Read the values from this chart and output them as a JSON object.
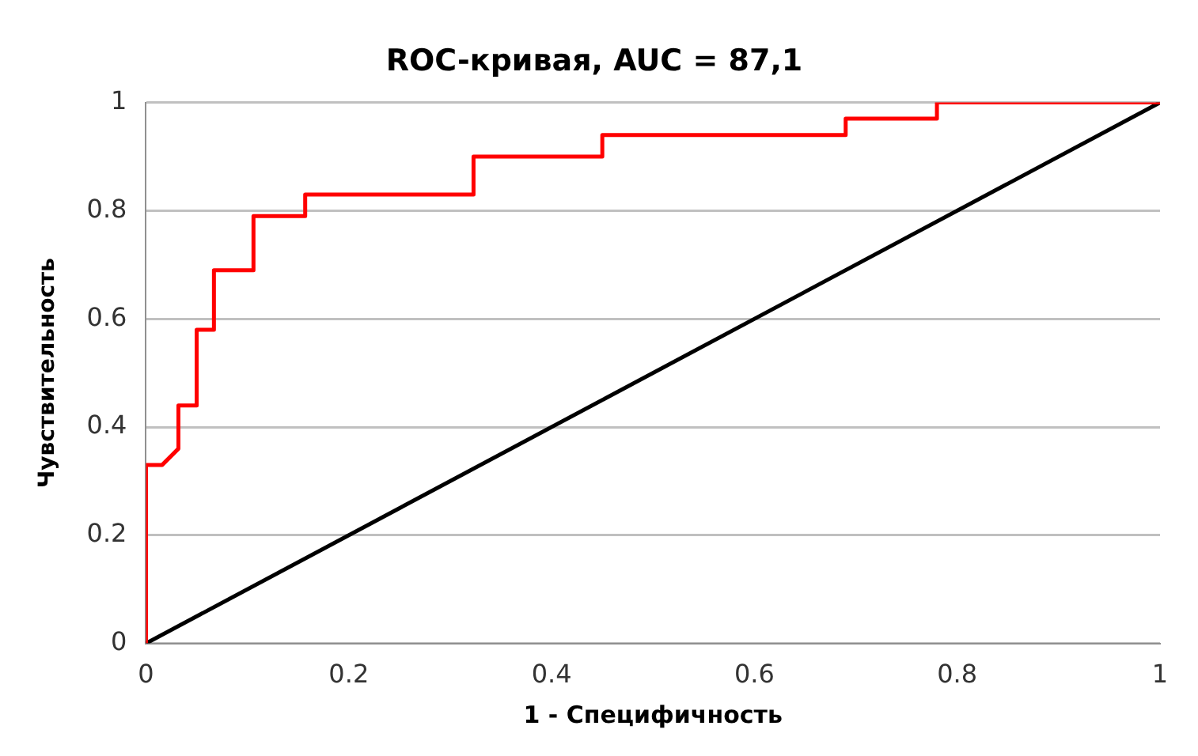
{
  "chart_data": {
    "type": "line",
    "title": "ROC-кривая, AUC = 87,1",
    "xlabel": "1 - Специфичность",
    "ylabel": "Чувствительность",
    "series": [
      {
        "color": "#ff0000",
        "x": [
          0,
          0,
          0.016,
          0.032,
          0.032,
          0.05,
          0.05,
          0.067,
          0.067,
          0.106,
          0.106,
          0.157,
          0.157,
          0.323,
          0.323,
          0.45,
          0.45,
          0.69,
          0.69,
          0.78,
          0.78,
          1
        ],
        "values": [
          0,
          0.33,
          0.33,
          0.36,
          0.44,
          0.44,
          0.58,
          0.58,
          0.69,
          0.69,
          0.79,
          0.79,
          0.83,
          0.83,
          0.9,
          0.9,
          0.94,
          0.94,
          0.97,
          0.97,
          1,
          1
        ]
      },
      {
        "color": "#000000",
        "x": [
          0,
          1
        ],
        "values": [
          0,
          1
        ]
      }
    ],
    "xlim": [
      0,
      1
    ],
    "ylim": [
      0,
      1
    ],
    "xticks": [
      0,
      0.2,
      0.4,
      0.6,
      0.8,
      1
    ],
    "yticks": [
      0,
      0.2,
      0.4,
      0.6,
      0.8,
      1
    ],
    "grid": "y",
    "legend": false,
    "marker": "none",
    "line_style": "solid"
  }
}
